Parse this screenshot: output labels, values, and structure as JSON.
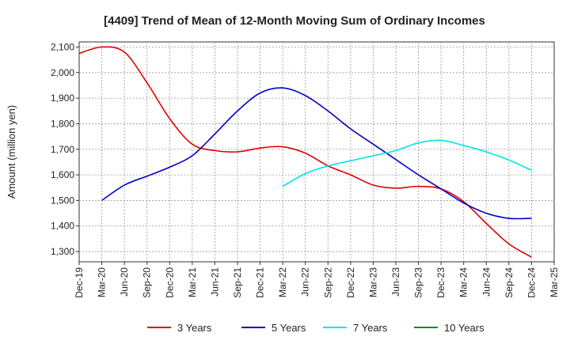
{
  "chart_data": {
    "type": "line",
    "title": "[4409]  Trend of Mean of 12-Month Moving Sum of Ordinary Incomes",
    "xlabel": "",
    "ylabel": "Amount (million yen)",
    "ylim": [
      1260,
      2120
    ],
    "yticks": [
      1300,
      1400,
      1500,
      1600,
      1700,
      1800,
      1900,
      2000,
      2100
    ],
    "ytick_labels": [
      "1,300",
      "1,400",
      "1,500",
      "1,600",
      "1,700",
      "1,800",
      "1,900",
      "2,000",
      "2,100"
    ],
    "x_categories": [
      "Dec-19",
      "Mar-20",
      "Jun-20",
      "Sep-20",
      "Dec-20",
      "Mar-21",
      "Jun-21",
      "Sep-21",
      "Dec-21",
      "Mar-22",
      "Jun-22",
      "Sep-22",
      "Dec-22",
      "Mar-23",
      "Jun-23",
      "Sep-23",
      "Dec-23",
      "Mar-24",
      "Jun-24",
      "Sep-24",
      "Dec-24",
      "Mar-25"
    ],
    "grid": true,
    "legend_position": "bottom",
    "series": [
      {
        "name": "3 Years",
        "color": "#e00000",
        "x_index": [
          0,
          1,
          2,
          3,
          4,
          5,
          6,
          7,
          8,
          9,
          10,
          11,
          12,
          13,
          14,
          15,
          16,
          17,
          18,
          19,
          20
        ],
        "values": [
          2075,
          2100,
          2080,
          1960,
          1820,
          1720,
          1695,
          1690,
          1705,
          1710,
          1685,
          1635,
          1600,
          1560,
          1548,
          1555,
          1545,
          1495,
          1410,
          1330,
          1278
        ]
      },
      {
        "name": "5 Years",
        "color": "#0000c8",
        "x_index": [
          1,
          2,
          3,
          4,
          5,
          6,
          7,
          8,
          9,
          10,
          11,
          12,
          13,
          14,
          15,
          16,
          17,
          18,
          19,
          20
        ],
        "values": [
          1500,
          1560,
          1595,
          1630,
          1675,
          1760,
          1850,
          1920,
          1940,
          1910,
          1850,
          1780,
          1720,
          1660,
          1600,
          1545,
          1490,
          1450,
          1430,
          1430
        ]
      },
      {
        "name": "7 Years",
        "color": "#00e5e5",
        "x_index": [
          9,
          10,
          11,
          12,
          13,
          14,
          15,
          16,
          17,
          18,
          19,
          20
        ],
        "values": [
          1555,
          1605,
          1635,
          1655,
          1675,
          1695,
          1725,
          1735,
          1715,
          1690,
          1658,
          1618
        ]
      },
      {
        "name": "10 Years",
        "color": "#1a8a1a",
        "x_index": [],
        "values": []
      }
    ]
  }
}
